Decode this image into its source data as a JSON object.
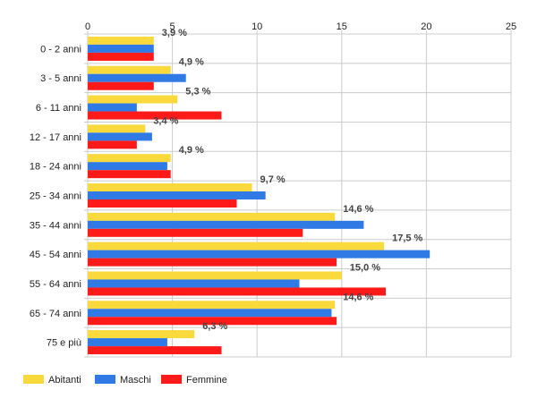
{
  "chart_data": {
    "type": "bar",
    "orientation": "horizontal",
    "categories": [
      "0 - 2 anni",
      "3 - 5 anni",
      "6 - 11 anni",
      "12 - 17 anni",
      "18 - 24 anni",
      "25 - 34 anni",
      "35 - 44 anni",
      "45 - 54 anni",
      "55 - 64 anni",
      "65 - 74 anni",
      "75 e più"
    ],
    "series": [
      {
        "name": "Abitanti",
        "color": "#f9d93b",
        "values": [
          3.9,
          4.9,
          5.3,
          3.4,
          4.9,
          9.7,
          14.6,
          17.5,
          15.0,
          14.6,
          6.3
        ]
      },
      {
        "name": "Maschi",
        "color": "#2f7ae5",
        "values": [
          3.9,
          5.8,
          2.9,
          3.8,
          4.7,
          10.5,
          16.3,
          20.2,
          12.5,
          14.4,
          4.7
        ]
      },
      {
        "name": "Femmine",
        "color": "#ff1a1a",
        "values": [
          3.9,
          3.9,
          7.9,
          2.9,
          4.9,
          8.8,
          12.7,
          14.7,
          17.6,
          14.7,
          7.9
        ]
      }
    ],
    "data_labels": [
      "3,9 %",
      "4,9 %",
      "5,3 %",
      "3,4 %",
      "4,9 %",
      "9,7 %",
      "14,6 %",
      "17,5 %",
      "15,0 %",
      "14,6 %",
      "6,3 %"
    ],
    "xlim": [
      0,
      25
    ],
    "xticks": [
      0,
      5,
      10,
      15,
      20,
      25
    ],
    "grid": true,
    "legend_position": "bottom-left"
  }
}
